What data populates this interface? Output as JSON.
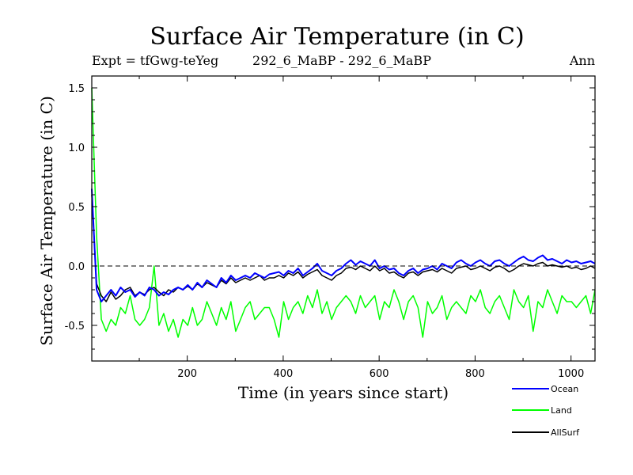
{
  "chart_data": {
    "type": "line",
    "title": "Surface Air Temperature (in C)",
    "subtitle_left": "Expt = tfGwg-teYeg",
    "subtitle_center": "292_6_MaBP - 292_6_MaBP",
    "subtitle_right": "Ann",
    "xlabel": "Time (in years since start)",
    "ylabel": "Surface Air Temperature (in C)",
    "xlim": [
      1,
      1050
    ],
    "ylim": [
      -0.8,
      1.6
    ],
    "xticks": [
      200,
      400,
      600,
      800,
      1000
    ],
    "yticks": [
      -0.5,
      0.0,
      0.5,
      1.0,
      1.5
    ],
    "xtick_labels": [
      "200",
      "400",
      "600",
      "800",
      "1000"
    ],
    "ytick_labels": [
      "-0.5",
      "0.0",
      "0.5",
      "1.0",
      "1.5"
    ],
    "reference_line": 0.0,
    "legend": [
      {
        "name": "Ocean",
        "color": "#0000ff"
      },
      {
        "name": "Land",
        "color": "#00ff00"
      },
      {
        "name": "AllSurf",
        "color": "#000000"
      }
    ],
    "series": [
      {
        "name": "Land",
        "color": "#00ff00",
        "x_start": 1,
        "x_step": 10,
        "values": [
          1.5,
          0.25,
          -0.45,
          -0.55,
          -0.45,
          -0.5,
          -0.35,
          -0.4,
          -0.25,
          -0.45,
          -0.5,
          -0.45,
          -0.35,
          0.0,
          -0.5,
          -0.4,
          -0.55,
          -0.45,
          -0.6,
          -0.45,
          -0.5,
          -0.35,
          -0.5,
          -0.45,
          -0.3,
          -0.4,
          -0.5,
          -0.35,
          -0.45,
          -0.3,
          -0.55,
          -0.45,
          -0.35,
          -0.3,
          -0.45,
          -0.4,
          -0.35,
          -0.35,
          -0.45,
          -0.6,
          -0.3,
          -0.45,
          -0.35,
          -0.3,
          -0.4,
          -0.25,
          -0.35,
          -0.2,
          -0.4,
          -0.3,
          -0.45,
          -0.35,
          -0.3,
          -0.25,
          -0.3,
          -0.4,
          -0.25,
          -0.35,
          -0.3,
          -0.25,
          -0.45,
          -0.3,
          -0.35,
          -0.2,
          -0.3,
          -0.45,
          -0.3,
          -0.25,
          -0.35,
          -0.6,
          -0.3,
          -0.4,
          -0.35,
          -0.25,
          -0.45,
          -0.35,
          -0.3,
          -0.35,
          -0.4,
          -0.25,
          -0.3,
          -0.2,
          -0.35,
          -0.4,
          -0.3,
          -0.25,
          -0.35,
          -0.45,
          -0.2,
          -0.3,
          -0.35,
          -0.25,
          -0.55,
          -0.3,
          -0.35,
          -0.2,
          -0.3,
          -0.4,
          -0.25,
          -0.3,
          -0.3,
          -0.35,
          -0.3,
          -0.25,
          -0.4,
          -0.2
        ]
      },
      {
        "name": "AllSurf",
        "color": "#000000",
        "x_start": 1,
        "x_step": 10,
        "values": [
          0.6,
          -0.15,
          -0.25,
          -0.3,
          -0.22,
          -0.28,
          -0.25,
          -0.2,
          -0.18,
          -0.25,
          -0.22,
          -0.24,
          -0.2,
          -0.18,
          -0.22,
          -0.25,
          -0.2,
          -0.22,
          -0.18,
          -0.2,
          -0.17,
          -0.2,
          -0.15,
          -0.18,
          -0.14,
          -0.16,
          -0.18,
          -0.12,
          -0.15,
          -0.1,
          -0.14,
          -0.12,
          -0.1,
          -0.12,
          -0.1,
          -0.08,
          -0.12,
          -0.1,
          -0.1,
          -0.08,
          -0.1,
          -0.06,
          -0.08,
          -0.05,
          -0.1,
          -0.07,
          -0.05,
          -0.03,
          -0.08,
          -0.1,
          -0.12,
          -0.08,
          -0.06,
          -0.02,
          -0.01,
          -0.03,
          0.0,
          -0.02,
          -0.04,
          0.0,
          -0.04,
          -0.02,
          -0.06,
          -0.05,
          -0.08,
          -0.1,
          -0.06,
          -0.05,
          -0.08,
          -0.05,
          -0.04,
          -0.03,
          -0.05,
          -0.02,
          -0.04,
          -0.06,
          -0.02,
          -0.01,
          0.0,
          -0.03,
          -0.02,
          0.0,
          -0.02,
          -0.04,
          -0.01,
          0.0,
          -0.02,
          -0.05,
          -0.03,
          0.0,
          0.02,
          0.01,
          0.0,
          0.02,
          0.03,
          0.0,
          0.01,
          0.0,
          -0.01,
          0.0,
          -0.02,
          -0.01,
          -0.03,
          -0.02,
          0.0,
          -0.02
        ]
      },
      {
        "name": "Ocean",
        "color": "#0000ff",
        "x_start": 1,
        "x_step": 10,
        "values": [
          0.65,
          -0.2,
          -0.3,
          -0.25,
          -0.2,
          -0.25,
          -0.18,
          -0.22,
          -0.2,
          -0.26,
          -0.22,
          -0.25,
          -0.18,
          -0.2,
          -0.25,
          -0.22,
          -0.24,
          -0.2,
          -0.18,
          -0.2,
          -0.16,
          -0.2,
          -0.14,
          -0.18,
          -0.12,
          -0.15,
          -0.18,
          -0.1,
          -0.14,
          -0.08,
          -0.12,
          -0.1,
          -0.08,
          -0.1,
          -0.06,
          -0.08,
          -0.1,
          -0.07,
          -0.06,
          -0.05,
          -0.08,
          -0.04,
          -0.06,
          -0.02,
          -0.08,
          -0.05,
          -0.02,
          0.02,
          -0.04,
          -0.06,
          -0.08,
          -0.04,
          -0.02,
          0.02,
          0.05,
          0.01,
          0.04,
          0.02,
          0.0,
          0.05,
          -0.02,
          0.0,
          -0.03,
          -0.02,
          -0.06,
          -0.08,
          -0.04,
          -0.02,
          -0.06,
          -0.03,
          -0.02,
          0.0,
          -0.03,
          0.02,
          0.0,
          -0.02,
          0.03,
          0.05,
          0.02,
          0.0,
          0.03,
          0.05,
          0.02,
          0.0,
          0.04,
          0.05,
          0.02,
          0.0,
          0.03,
          0.06,
          0.08,
          0.05,
          0.04,
          0.07,
          0.09,
          0.05,
          0.06,
          0.04,
          0.02,
          0.05,
          0.03,
          0.04,
          0.02,
          0.03,
          0.04,
          0.02
        ]
      }
    ]
  }
}
